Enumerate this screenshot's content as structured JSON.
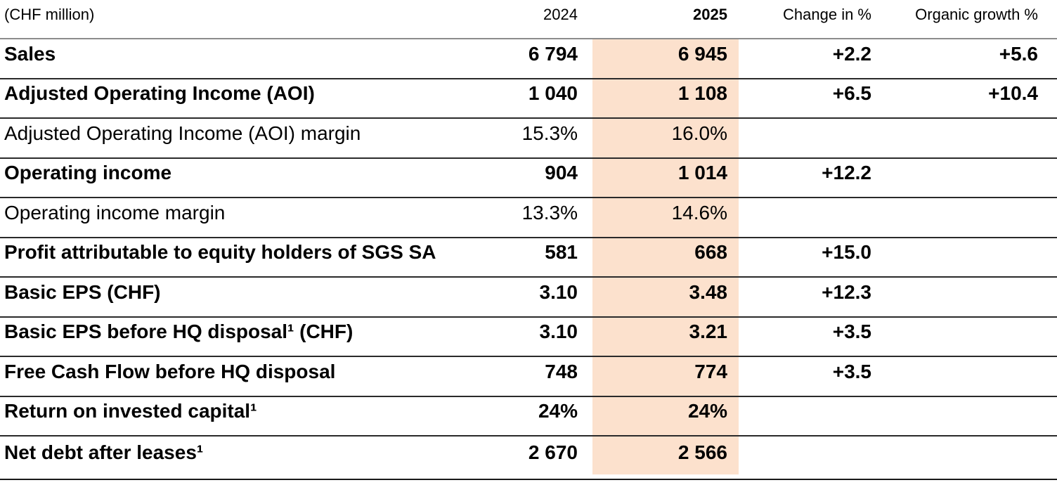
{
  "table": {
    "unit_label": "(CHF million)",
    "column_headers": {
      "y2024": "2024",
      "y2025": "2025",
      "change": "Change in %",
      "organic": "Organic growth %"
    },
    "rows": [
      {
        "label": "Sales",
        "y2024": "6 794",
        "y2025": "6 945",
        "change": "+2.2",
        "organic": "+5.6",
        "bold": true
      },
      {
        "label": "Adjusted Operating Income (AOI)",
        "y2024": "1 040",
        "y2025": "1 108",
        "change": "+6.5",
        "organic": "+10.4",
        "bold": true
      },
      {
        "label": "Adjusted Operating Income (AOI) margin",
        "y2024": "15.3%",
        "y2025": "16.0%",
        "change": "",
        "organic": "",
        "bold": false
      },
      {
        "label": "Operating income",
        "y2024": "904",
        "y2025": "1 014",
        "change": "+12.2",
        "organic": "",
        "bold": true
      },
      {
        "label": "Operating income margin",
        "y2024": "13.3%",
        "y2025": "14.6%",
        "change": "",
        "organic": "",
        "bold": false
      },
      {
        "label": "Profit attributable to equity holders of SGS SA",
        "y2024": "581",
        "y2025": "668",
        "change": "+15.0",
        "organic": "",
        "bold": true
      },
      {
        "label": "Basic EPS (CHF)",
        "y2024": "3.10",
        "y2025": "3.48",
        "change": "+12.3",
        "organic": "",
        "bold": true
      },
      {
        "label": "Basic EPS before HQ disposal¹ (CHF)",
        "y2024": "3.10",
        "y2025": "3.21",
        "change": "+3.5",
        "organic": "",
        "bold": true
      },
      {
        "label": "Free Cash Flow before HQ disposal",
        "y2024": "748",
        "y2025": "774",
        "change": "+3.5",
        "organic": "",
        "bold": true
      },
      {
        "label": "Return on invested capital¹",
        "y2024": "24%",
        "y2025": "24%",
        "change": "",
        "organic": "",
        "bold": true
      },
      {
        "label": "Net debt after leases¹",
        "y2024": "2 670",
        "y2025": "2 566",
        "change": "",
        "organic": "",
        "bold": true
      }
    ]
  },
  "colors": {
    "highlight_2025_column": "#fce1cd",
    "header_rule": "#8c8c8c",
    "row_rule": "#2a2a2a",
    "bottom_rule": "#1a1a1a",
    "text": "#000000",
    "background": "#ffffff"
  }
}
